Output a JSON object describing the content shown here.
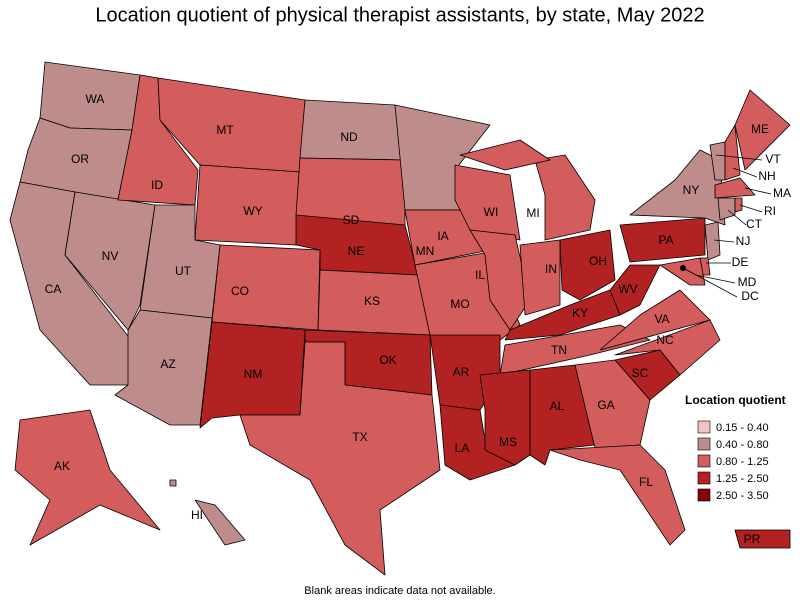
{
  "title": "Location quotient of physical therapist assistants, by state, May 2022",
  "legend": {
    "title": "Location quotient",
    "items": [
      {
        "label": "0.15 - 0.40",
        "color": "#f6c4c4"
      },
      {
        "label": "0.40 - 0.80",
        "color": "#bf8c8c"
      },
      {
        "label": "0.80 - 1.25",
        "color": "#d35c5c"
      },
      {
        "label": "1.25 - 2.50",
        "color": "#b22222"
      },
      {
        "label": "2.50 - 3.50",
        "color": "#8b0000"
      }
    ]
  },
  "states": [
    {
      "label": "WA",
      "color": "#bf8c8c"
    },
    {
      "label": "OR",
      "color": "#bf8c8c"
    },
    {
      "label": "CA",
      "color": "#bf8c8c"
    },
    {
      "label": "NV",
      "color": "#bf8c8c"
    },
    {
      "label": "ID",
      "color": "#d35c5c"
    },
    {
      "label": "MT",
      "color": "#d35c5c"
    },
    {
      "label": "WY",
      "color": "#d35c5c"
    },
    {
      "label": "UT",
      "color": "#bf8c8c"
    },
    {
      "label": "AZ",
      "color": "#bf8c8c"
    },
    {
      "label": "CO",
      "color": "#d35c5c"
    },
    {
      "label": "NM",
      "color": "#b22222"
    },
    {
      "label": "ND",
      "color": "#bf8c8c"
    },
    {
      "label": "SD",
      "color": "#d35c5c"
    },
    {
      "label": "NE",
      "color": "#b22222"
    },
    {
      "label": "KS",
      "color": "#d35c5c"
    },
    {
      "label": "OK",
      "color": "#b22222"
    },
    {
      "label": "TX",
      "color": "#d35c5c"
    },
    {
      "label": "MN",
      "color": "#bf8c8c"
    },
    {
      "label": "IA",
      "color": "#d35c5c"
    },
    {
      "label": "MO",
      "color": "#d35c5c"
    },
    {
      "label": "AR",
      "color": "#b22222"
    },
    {
      "label": "LA",
      "color": "#b22222"
    },
    {
      "label": "WI",
      "color": "#d35c5c"
    },
    {
      "label": "IL",
      "color": "#d35c5c"
    },
    {
      "label": "MI",
      "color": "#d35c5c"
    },
    {
      "label": "IN",
      "color": "#d35c5c"
    },
    {
      "label": "OH",
      "color": "#b22222"
    },
    {
      "label": "KY",
      "color": "#b22222"
    },
    {
      "label": "TN",
      "color": "#d35c5c"
    },
    {
      "label": "MS",
      "color": "#b22222"
    },
    {
      "label": "AL",
      "color": "#b22222"
    },
    {
      "label": "GA",
      "color": "#d35c5c"
    },
    {
      "label": "FL",
      "color": "#d35c5c"
    },
    {
      "label": "SC",
      "color": "#b22222"
    },
    {
      "label": "NC",
      "color": "#d35c5c"
    },
    {
      "label": "VA",
      "color": "#d35c5c"
    },
    {
      "label": "WV",
      "color": "#b22222"
    },
    {
      "label": "PA",
      "color": "#b22222"
    },
    {
      "label": "NY",
      "color": "#bf8c8c"
    },
    {
      "label": "VT",
      "color": "#bf8c8c"
    },
    {
      "label": "NH",
      "color": "#d35c5c"
    },
    {
      "label": "ME",
      "color": "#d35c5c"
    },
    {
      "label": "MA",
      "color": "#d35c5c"
    },
    {
      "label": "CT",
      "color": "#bf8c8c"
    },
    {
      "label": "RI",
      "color": "#d35c5c"
    },
    {
      "label": "NJ",
      "color": "#bf8c8c"
    },
    {
      "label": "DE",
      "color": "#d35c5c"
    },
    {
      "label": "MD",
      "color": "#d35c5c"
    },
    {
      "label": "DC",
      "color": "#000000"
    },
    {
      "label": "AK",
      "color": "#d35c5c"
    },
    {
      "label": "HI",
      "color": "#bf8c8c"
    },
    {
      "label": "PR",
      "color": "#b22222"
    }
  ],
  "note": "Blank areas indicate data not available."
}
